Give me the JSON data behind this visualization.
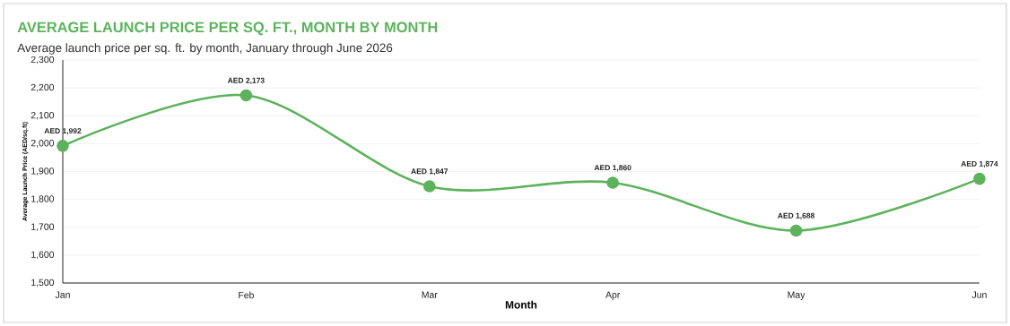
{
  "chart_data": {
    "type": "line",
    "title": "AVERAGE LAUNCH PRICE PER SQ. FT., MONTH BY MONTH",
    "subtitle": "Average launch price per sq. ft. by month, January through June 2026",
    "xlabel": "Month",
    "ylabel": "Average Launch Price (AED/sq.ft)",
    "categories": [
      "Jan",
      "Feb",
      "Mar",
      "Apr",
      "May",
      "Jun"
    ],
    "series": [
      {
        "color": "#5cb35c",
        "values": [
          1992,
          2173,
          1847,
          1860,
          1688,
          1874
        ],
        "value_labels": [
          "AED 1,992",
          "AED 2,173",
          "AED 1,847",
          "AED 1,860",
          "AED 1,688",
          "AED 1,874"
        ]
      }
    ],
    "ylim": [
      1500,
      2300
    ],
    "yticks": [
      {
        "value": 1500,
        "label": "1,500"
      },
      {
        "value": 1600,
        "label": "1,600"
      },
      {
        "value": 1700,
        "label": "1,700"
      },
      {
        "value": 1800,
        "label": "1,800"
      },
      {
        "value": 1900,
        "label": "1,900"
      },
      {
        "value": 2000,
        "label": "2,000"
      },
      {
        "value": 2100,
        "label": "2,100"
      },
      {
        "value": 2200,
        "label": "2,200"
      },
      {
        "value": 2300,
        "label": "2,300"
      }
    ],
    "grid": "y",
    "marker": "circle",
    "line_style": "solid"
  }
}
